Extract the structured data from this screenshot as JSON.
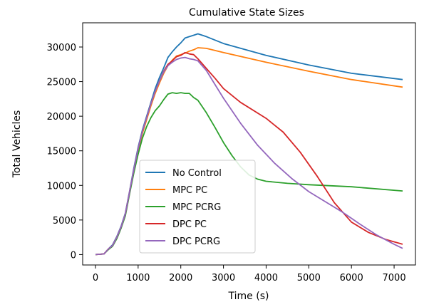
{
  "chart_data": {
    "type": "line",
    "title": "Cumulative State Sizes",
    "xlabel": "Time (s)",
    "ylabel": "Total Vehicles",
    "xlim": [
      -300,
      7500
    ],
    "ylim": [
      -1500,
      33500
    ],
    "xticks": [
      0,
      1000,
      2000,
      3000,
      4000,
      5000,
      6000,
      7000
    ],
    "yticks": [
      0,
      5000,
      10000,
      15000,
      20000,
      25000,
      30000
    ],
    "legend_position": "lower-center",
    "grid": false,
    "series": [
      {
        "name": "No Control",
        "color": "#1f77b4",
        "points": [
          [
            0,
            0
          ],
          [
            200,
            100
          ],
          [
            300,
            800
          ],
          [
            400,
            1400
          ],
          [
            500,
            2600
          ],
          [
            600,
            4100
          ],
          [
            700,
            6000
          ],
          [
            800,
            9200
          ],
          [
            900,
            12500
          ],
          [
            1000,
            15500
          ],
          [
            1100,
            18000
          ],
          [
            1200,
            20000
          ],
          [
            1300,
            22000
          ],
          [
            1400,
            24000
          ],
          [
            1500,
            25600
          ],
          [
            1600,
            27000
          ],
          [
            1700,
            28500
          ],
          [
            1800,
            29300
          ],
          [
            1900,
            30000
          ],
          [
            2000,
            30600
          ],
          [
            2100,
            31300
          ],
          [
            2200,
            31500
          ],
          [
            2300,
            31700
          ],
          [
            2400,
            31900
          ],
          [
            2600,
            31500
          ],
          [
            3000,
            30500
          ],
          [
            4000,
            28800
          ],
          [
            5000,
            27400
          ],
          [
            6000,
            26200
          ],
          [
            7200,
            25300
          ]
        ]
      },
      {
        "name": "MPC PC",
        "color": "#ff7f0e",
        "points": [
          [
            0,
            0
          ],
          [
            200,
            100
          ],
          [
            300,
            800
          ],
          [
            400,
            1300
          ],
          [
            500,
            2500
          ],
          [
            600,
            3900
          ],
          [
            700,
            5800
          ],
          [
            800,
            9000
          ],
          [
            900,
            12000
          ],
          [
            1000,
            15000
          ],
          [
            1100,
            17500
          ],
          [
            1200,
            19500
          ],
          [
            1300,
            21500
          ],
          [
            1400,
            23300
          ],
          [
            1500,
            24800
          ],
          [
            1600,
            26200
          ],
          [
            1700,
            27300
          ],
          [
            1800,
            28100
          ],
          [
            1900,
            28700
          ],
          [
            2000,
            28900
          ],
          [
            2100,
            29100
          ],
          [
            2200,
            29400
          ],
          [
            2300,
            29600
          ],
          [
            2400,
            29900
          ],
          [
            2600,
            29800
          ],
          [
            3000,
            29200
          ],
          [
            4000,
            27800
          ],
          [
            5000,
            26500
          ],
          [
            6000,
            25300
          ],
          [
            7200,
            24200
          ]
        ]
      },
      {
        "name": "MPC PCRG",
        "color": "#2ca02c",
        "points": [
          [
            0,
            0
          ],
          [
            200,
            100
          ],
          [
            300,
            700
          ],
          [
            400,
            1200
          ],
          [
            500,
            2300
          ],
          [
            600,
            3800
          ],
          [
            700,
            5600
          ],
          [
            800,
            8800
          ],
          [
            900,
            11800
          ],
          [
            1000,
            14500
          ],
          [
            1100,
            16800
          ],
          [
            1200,
            18500
          ],
          [
            1300,
            19800
          ],
          [
            1400,
            20800
          ],
          [
            1500,
            21500
          ],
          [
            1600,
            22400
          ],
          [
            1700,
            23200
          ],
          [
            1800,
            23400
          ],
          [
            1900,
            23300
          ],
          [
            2000,
            23400
          ],
          [
            2100,
            23300
          ],
          [
            2200,
            23300
          ],
          [
            2300,
            22700
          ],
          [
            2400,
            22300
          ],
          [
            2600,
            20500
          ],
          [
            2800,
            18400
          ],
          [
            3000,
            16200
          ],
          [
            3200,
            14300
          ],
          [
            3400,
            12700
          ],
          [
            3600,
            11500
          ],
          [
            3800,
            10900
          ],
          [
            4000,
            10600
          ],
          [
            4500,
            10300
          ],
          [
            5000,
            10100
          ],
          [
            6000,
            9800
          ],
          [
            7200,
            9200
          ]
        ]
      },
      {
        "name": "DPC PC",
        "color": "#d62728",
        "points": [
          [
            0,
            0
          ],
          [
            200,
            100
          ],
          [
            300,
            800
          ],
          [
            400,
            1300
          ],
          [
            500,
            2500
          ],
          [
            600,
            4000
          ],
          [
            700,
            5900
          ],
          [
            800,
            9100
          ],
          [
            900,
            12300
          ],
          [
            1000,
            15300
          ],
          [
            1100,
            17800
          ],
          [
            1200,
            19800
          ],
          [
            1300,
            21800
          ],
          [
            1400,
            23600
          ],
          [
            1500,
            25100
          ],
          [
            1600,
            26500
          ],
          [
            1700,
            27500
          ],
          [
            1800,
            28000
          ],
          [
            1900,
            28600
          ],
          [
            2000,
            28800
          ],
          [
            2100,
            29200
          ],
          [
            2200,
            29000
          ],
          [
            2300,
            28900
          ],
          [
            2400,
            28300
          ],
          [
            2600,
            26900
          ],
          [
            2800,
            25500
          ],
          [
            3000,
            24000
          ],
          [
            3400,
            22000
          ],
          [
            4000,
            19700
          ],
          [
            4400,
            17700
          ],
          [
            4800,
            14800
          ],
          [
            5200,
            11300
          ],
          [
            5600,
            7500
          ],
          [
            6000,
            4700
          ],
          [
            6400,
            3200
          ],
          [
            6800,
            2200
          ],
          [
            7200,
            1500
          ]
        ]
      },
      {
        "name": "DPC PCRG",
        "color": "#9467bd",
        "points": [
          [
            0,
            0
          ],
          [
            200,
            100
          ],
          [
            300,
            800
          ],
          [
            400,
            1300
          ],
          [
            500,
            2500
          ],
          [
            600,
            4000
          ],
          [
            700,
            5900
          ],
          [
            800,
            9100
          ],
          [
            900,
            12300
          ],
          [
            1000,
            15300
          ],
          [
            1100,
            17800
          ],
          [
            1200,
            19800
          ],
          [
            1300,
            21800
          ],
          [
            1400,
            23600
          ],
          [
            1500,
            25100
          ],
          [
            1600,
            26400
          ],
          [
            1700,
            27300
          ],
          [
            1800,
            27800
          ],
          [
            1900,
            28200
          ],
          [
            2000,
            28400
          ],
          [
            2100,
            28500
          ],
          [
            2200,
            28300
          ],
          [
            2300,
            28200
          ],
          [
            2400,
            28000
          ],
          [
            2600,
            26600
          ],
          [
            2800,
            24600
          ],
          [
            3000,
            22600
          ],
          [
            3400,
            19000
          ],
          [
            3800,
            15800
          ],
          [
            4200,
            13200
          ],
          [
            4600,
            11000
          ],
          [
            5000,
            9100
          ],
          [
            5400,
            7600
          ],
          [
            5800,
            6100
          ],
          [
            6200,
            4400
          ],
          [
            6600,
            2800
          ],
          [
            7000,
            1500
          ],
          [
            7200,
            900
          ]
        ]
      }
    ]
  }
}
